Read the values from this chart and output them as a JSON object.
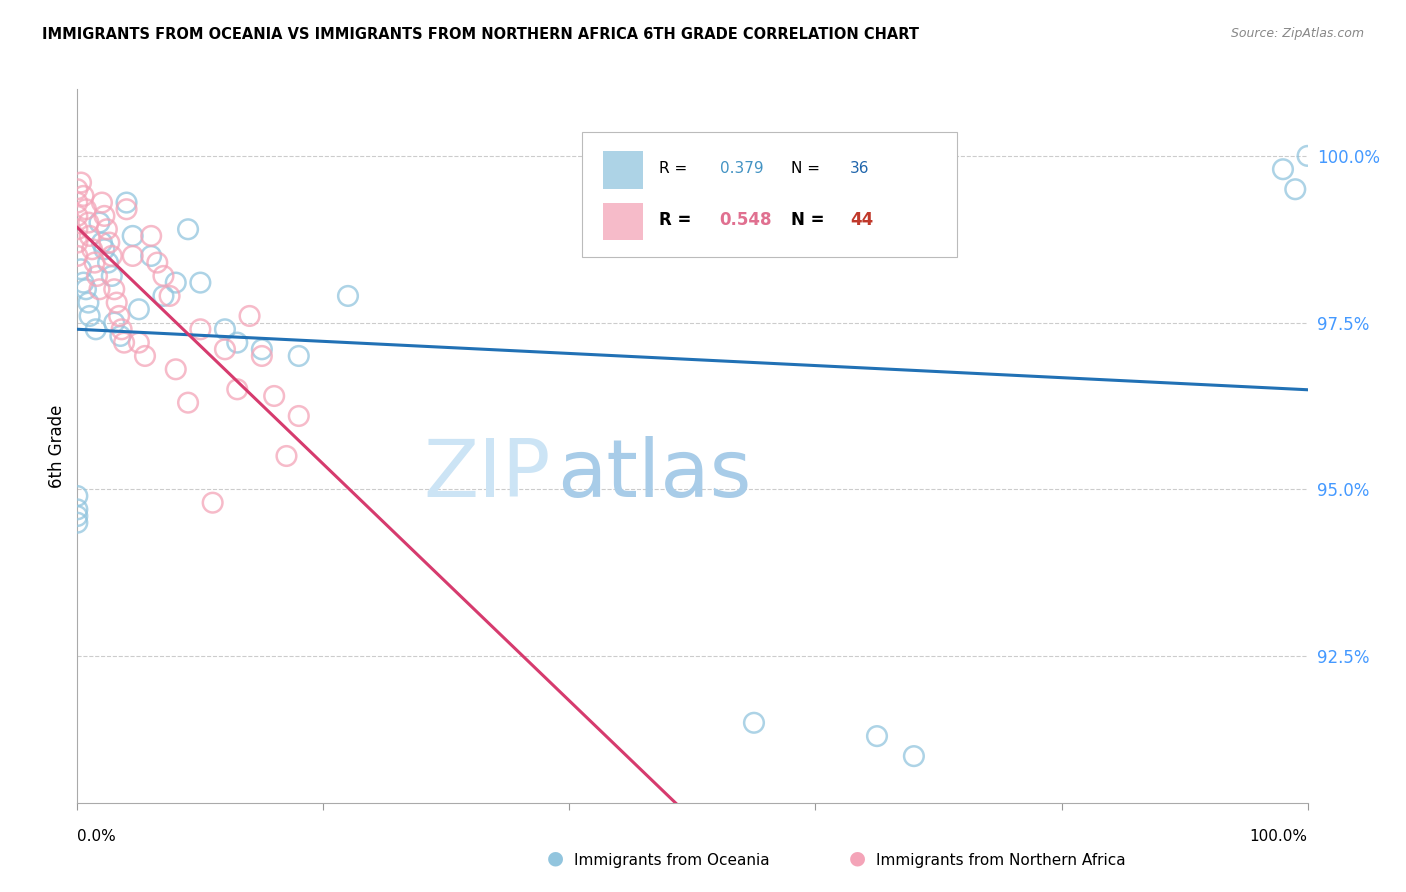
{
  "title": "IMMIGRANTS FROM OCEANIA VS IMMIGRANTS FROM NORTHERN AFRICA 6TH GRADE CORRELATION CHART",
  "source": "Source: ZipAtlas.com",
  "ylabel": "6th Grade",
  "r_blue": 0.379,
  "n_blue": 36,
  "r_pink": 0.548,
  "n_pink": 44,
  "xmin": 0.0,
  "xmax": 1.0,
  "ymin": 90.3,
  "ymax": 101.0,
  "blue_color": "#92c5de",
  "pink_color": "#f4a4b8",
  "blue_line_color": "#2171b5",
  "pink_line_color": "#d63b6e",
  "ytick_color": "#4499ff",
  "blue_r_color": "#4393c3",
  "blue_n_color": "#2166ac",
  "pink_r_color": "#e07090",
  "pink_n_color": "#c0392b",
  "blue_scatter_x": [
    0.0,
    0.0,
    0.0,
    0.0,
    0.003,
    0.005,
    0.007,
    0.009,
    0.01,
    0.015,
    0.018,
    0.02,
    0.022,
    0.025,
    0.028,
    0.03,
    0.035,
    0.04,
    0.045,
    0.05,
    0.06,
    0.07,
    0.08,
    0.09,
    0.1,
    0.12,
    0.13,
    0.15,
    0.18,
    0.22,
    0.55,
    0.65,
    0.68,
    0.98,
    0.99,
    1.0
  ],
  "blue_scatter_y": [
    94.9,
    94.7,
    94.6,
    94.5,
    98.3,
    98.1,
    98.0,
    97.8,
    97.6,
    97.4,
    99.0,
    98.7,
    98.6,
    98.4,
    98.2,
    97.5,
    97.3,
    99.3,
    98.8,
    97.7,
    98.5,
    97.9,
    98.1,
    98.9,
    98.1,
    97.4,
    97.2,
    97.1,
    97.0,
    97.9,
    91.5,
    91.3,
    91.0,
    99.8,
    99.5,
    100.0
  ],
  "pink_scatter_x": [
    0.0,
    0.0,
    0.0,
    0.0,
    0.0,
    0.0,
    0.003,
    0.005,
    0.007,
    0.009,
    0.01,
    0.012,
    0.014,
    0.016,
    0.018,
    0.02,
    0.022,
    0.024,
    0.026,
    0.028,
    0.03,
    0.032,
    0.034,
    0.036,
    0.038,
    0.04,
    0.045,
    0.05,
    0.055,
    0.06,
    0.065,
    0.07,
    0.075,
    0.08,
    0.09,
    0.1,
    0.11,
    0.12,
    0.13,
    0.14,
    0.15,
    0.16,
    0.17,
    0.18
  ],
  "pink_scatter_y": [
    99.5,
    99.3,
    99.1,
    98.9,
    98.7,
    98.5,
    99.6,
    99.4,
    99.2,
    99.0,
    98.8,
    98.6,
    98.4,
    98.2,
    98.0,
    99.3,
    99.1,
    98.9,
    98.7,
    98.5,
    98.0,
    97.8,
    97.6,
    97.4,
    97.2,
    99.2,
    98.5,
    97.2,
    97.0,
    98.8,
    98.4,
    98.2,
    97.9,
    96.8,
    96.3,
    97.4,
    94.8,
    97.1,
    96.5,
    97.6,
    97.0,
    96.4,
    95.5,
    96.1
  ]
}
